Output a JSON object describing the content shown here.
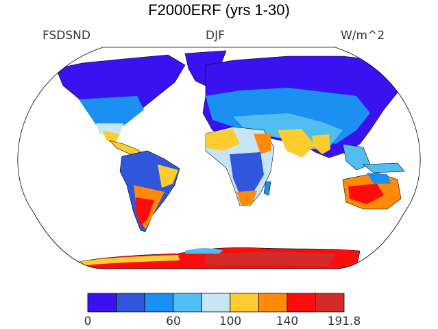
{
  "title": "F2000ERF (yrs 1-30)",
  "left_label": "FSDSND",
  "center_label": "DJF",
  "right_label": "W/m^2",
  "projection": "Robinson",
  "colorbar": {
    "colors": [
      "#3a12f2",
      "#3056dc",
      "#1b8ff2",
      "#51bdf0",
      "#c6e6f6",
      "#fdcc2e",
      "#fd8a08",
      "#fb0d0e",
      "#d32a2a"
    ],
    "ticks": [
      "0",
      "60",
      "100",
      "140",
      "191.8"
    ]
  }
}
